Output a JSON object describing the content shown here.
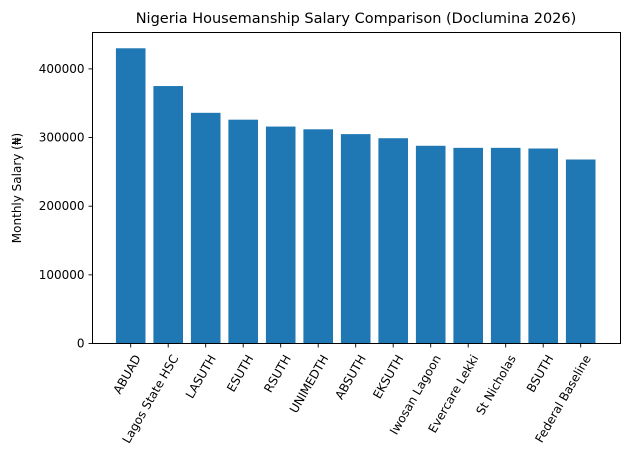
{
  "chart_data": {
    "type": "bar",
    "title": "Nigeria Housemanship Salary Comparison (Doclumina 2026)",
    "xlabel": "",
    "ylabel": "Monthly Salary (₦)",
    "categories": [
      "ABUAD",
      "Lagos State HSC",
      "LASUTH",
      "ESUTH",
      "RSUTH",
      "UNIMEDTH",
      "ABSUTH",
      "EKSUTH",
      "Iwosan Lagoon",
      "Evercare Lekki",
      "St Nicholas",
      "BSUTH",
      "Federal Baseline"
    ],
    "values": [
      430000,
      375000,
      336000,
      326000,
      316000,
      312000,
      305000,
      299000,
      288000,
      285000,
      285000,
      284000,
      268000
    ],
    "ylim": [
      0,
      453000
    ],
    "yticks": [
      0,
      100000,
      200000,
      300000,
      400000
    ],
    "ytick_labels": [
      "0",
      "100000",
      "200000",
      "300000",
      "400000"
    ],
    "grid": false,
    "legend": null,
    "bar_color": "#1f77b4",
    "x_tick_rotation": 60
  }
}
